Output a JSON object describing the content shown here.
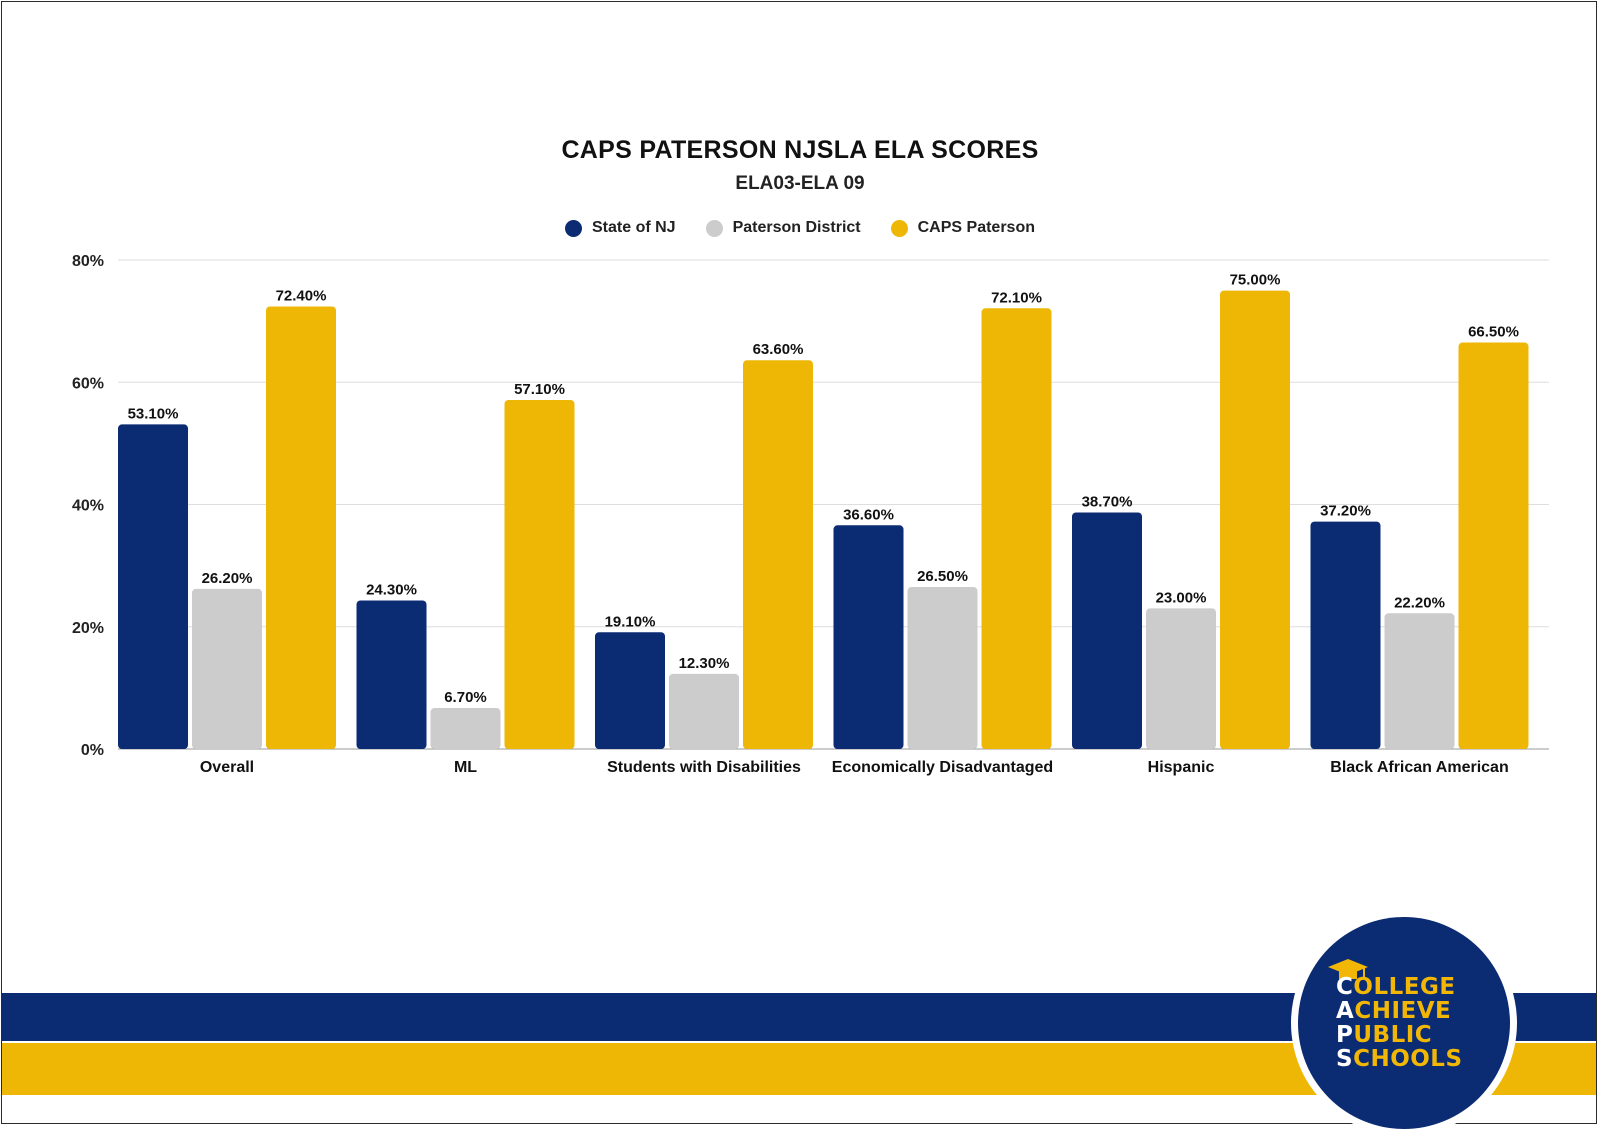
{
  "chart_data": {
    "type": "bar",
    "title": "CAPS PATERSON NJSLA ELA SCORES",
    "subtitle": "ELA03-ELA 09",
    "xlabel": "",
    "ylabel": "",
    "ylim": [
      0,
      80
    ],
    "yticks": [
      0,
      20,
      40,
      60,
      80
    ],
    "ytick_labels": [
      "0%",
      "20%",
      "40%",
      "60%",
      "80%"
    ],
    "grid": true,
    "legend_position": "top-center",
    "categories": [
      "Overall",
      "ML",
      "Students with Disabilities",
      "Economically Disadvantaged",
      "Hispanic",
      "Black African American"
    ],
    "series": [
      {
        "name": "State of NJ",
        "color": "#0b2b73",
        "values": [
          53.1,
          24.3,
          19.1,
          36.6,
          38.7,
          37.2
        ],
        "labels": [
          "53.10%",
          "24.30%",
          "19.10%",
          "36.60%",
          "38.70%",
          "37.20%"
        ]
      },
      {
        "name": "Paterson District",
        "color": "#cccccc",
        "values": [
          26.2,
          6.7,
          12.3,
          26.5,
          23.0,
          22.2
        ],
        "labels": [
          "26.20%",
          "6.70%",
          "12.30%",
          "26.50%",
          "23.00%",
          "22.20%"
        ]
      },
      {
        "name": "CAPS Paterson",
        "color": "#eeb705",
        "values": [
          72.4,
          57.1,
          63.6,
          72.1,
          75.0,
          66.5
        ],
        "labels": [
          "72.40%",
          "57.10%",
          "63.60%",
          "72.10%",
          "75.00%",
          "66.50%"
        ]
      }
    ]
  },
  "logo": {
    "lines": [
      "COLLEGE",
      "ACHIEVE",
      "PUBLIC",
      "SCHOOLS"
    ],
    "icon": "graduation-cap-icon"
  },
  "colors": {
    "navy": "#0b2b73",
    "gold": "#eeb705",
    "gray": "#cccccc"
  }
}
